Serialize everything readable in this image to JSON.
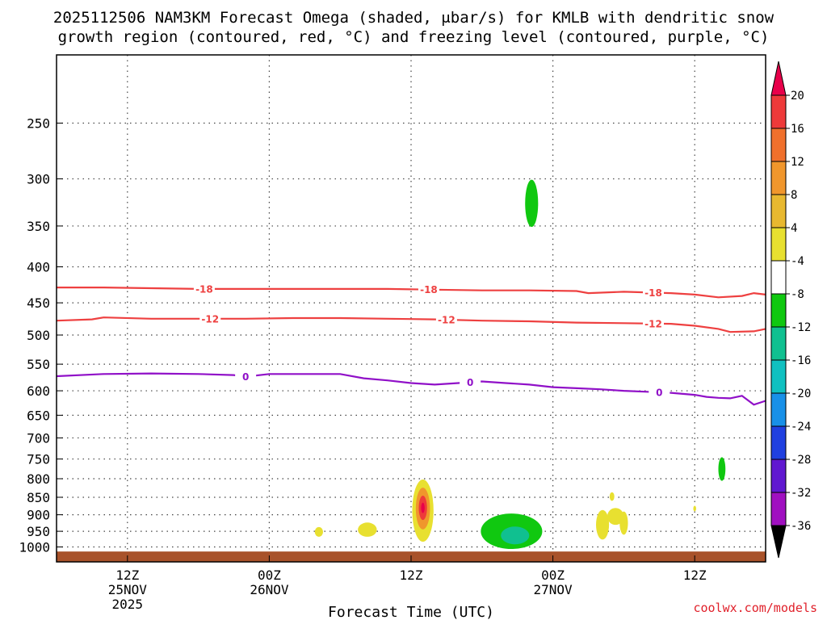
{
  "chart_data": {
    "type": "heatmap",
    "title_line1": "2025112506 NAM3KM Forecast Omega (shaded, μbar/s) for KMLB with dendritic snow",
    "title_line2": "growth region (contoured, red, °C) and freezing level (contoured, purple, °C)",
    "xlabel": "Forecast Time (UTC)",
    "ylabel": "",
    "credit": "coolwx.com/models",
    "x_range_hours": [
      0,
      60
    ],
    "y_range_hpa": [
      200,
      1050
    ],
    "y_ticks": [
      250,
      300,
      350,
      400,
      450,
      500,
      550,
      600,
      650,
      700,
      750,
      800,
      850,
      900,
      950,
      1000
    ],
    "y_tick_labels": [
      "250",
      "300",
      "350",
      "400",
      "450",
      "500",
      "550",
      "600",
      "650",
      "700",
      "750",
      "800",
      "850",
      "900",
      "950",
      "1000"
    ],
    "x_ticks": [
      {
        "hour": 6,
        "label": "12Z",
        "date": "25NOV",
        "year": "2025"
      },
      {
        "hour": 18,
        "label": "00Z",
        "date": "26NOV",
        "year": ""
      },
      {
        "hour": 30,
        "label": "12Z",
        "date": "",
        "year": ""
      },
      {
        "hour": 42,
        "label": "00Z",
        "date": "27NOV",
        "year": ""
      },
      {
        "hour": 54,
        "label": "12Z",
        "date": "",
        "year": ""
      }
    ],
    "grid": true,
    "colorbar": {
      "levels": [
        "20",
        "16",
        "12",
        "8",
        "4",
        "-4",
        "-8",
        "-12",
        "-16",
        "-20",
        "-24",
        "-28",
        "-32",
        "-36"
      ],
      "colors": [
        "#e8004a",
        "#ee3a3a",
        "#f0702c",
        "#f0962c",
        "#e8b830",
        "#e8e030",
        "#ffffff",
        "#10c810",
        "#10c090",
        "#10c0c0",
        "#1890e8",
        "#2040e0",
        "#6018d0",
        "#a010c0",
        "#a8a8a8",
        "#000000"
      ]
    },
    "contours": [
      {
        "name": "-18",
        "color": "#ee4040",
        "points": [
          [
            0,
            428
          ],
          [
            4,
            428
          ],
          [
            8,
            429
          ],
          [
            12,
            430
          ],
          [
            16,
            430
          ],
          [
            20,
            430
          ],
          [
            24,
            430
          ],
          [
            28,
            430
          ],
          [
            32,
            431
          ],
          [
            36,
            432
          ],
          [
            40,
            432
          ],
          [
            44,
            433
          ],
          [
            45,
            436
          ],
          [
            48,
            434
          ],
          [
            52,
            436
          ],
          [
            54,
            438
          ],
          [
            56,
            442
          ],
          [
            58,
            440
          ],
          [
            59,
            436
          ],
          [
            60,
            438
          ]
        ],
        "labels": [
          12.5,
          31.5,
          50.5
        ]
      },
      {
        "name": "-12",
        "color": "#ee4040",
        "points": [
          [
            0,
            477
          ],
          [
            3,
            475
          ],
          [
            4,
            472
          ],
          [
            8,
            474
          ],
          [
            12,
            474
          ],
          [
            16,
            474
          ],
          [
            20,
            473
          ],
          [
            24,
            473
          ],
          [
            28,
            474
          ],
          [
            32,
            475
          ],
          [
            36,
            477
          ],
          [
            40,
            478
          ],
          [
            44,
            480
          ],
          [
            48,
            481
          ],
          [
            52,
            482
          ],
          [
            54,
            485
          ],
          [
            56,
            490
          ],
          [
            57,
            495
          ],
          [
            59,
            494
          ],
          [
            60,
            490
          ]
        ],
        "labels": [
          13,
          33,
          50.5
        ]
      },
      {
        "name": "0",
        "color": "#9010c8",
        "points": [
          [
            0,
            572
          ],
          [
            4,
            568
          ],
          [
            8,
            567
          ],
          [
            12,
            568
          ],
          [
            15,
            570
          ],
          [
            16,
            573
          ],
          [
            18,
            568
          ],
          [
            20,
            568
          ],
          [
            24,
            568
          ],
          [
            26,
            576
          ],
          [
            28,
            580
          ],
          [
            30,
            585
          ],
          [
            32,
            588
          ],
          [
            34,
            585
          ],
          [
            36,
            582
          ],
          [
            38,
            585
          ],
          [
            40,
            588
          ],
          [
            42,
            593
          ],
          [
            44,
            595
          ],
          [
            46,
            597
          ],
          [
            48,
            600
          ],
          [
            50,
            602
          ],
          [
            52,
            604
          ],
          [
            54,
            608
          ],
          [
            55,
            612
          ],
          [
            56,
            614
          ],
          [
            57,
            615
          ],
          [
            58,
            610
          ],
          [
            59,
            628
          ],
          [
            60,
            620
          ]
        ],
        "labels": [
          16,
          35,
          51
        ]
      }
    ],
    "shaded_features": [
      {
        "name": "green-blob-upper",
        "color": "#10c810",
        "center": [
          40.2,
          325
        ],
        "half_width_h": 0.55,
        "half_height_hpa": 25
      },
      {
        "name": "green-blob-low-right",
        "color": "#10c810",
        "center": [
          56.3,
          775
        ],
        "half_width_h": 0.3,
        "half_height_hpa": 30
      },
      {
        "name": "yellow-blob-small",
        "color": "#e8e030",
        "center": [
          22.2,
          952
        ],
        "half_width_h": 0.35,
        "half_height_hpa": 15
      },
      {
        "name": "yellow-blob-pair",
        "color": "#e8e030",
        "center": [
          26.3,
          945
        ],
        "half_width_h": 0.8,
        "half_height_hpa": 22
      },
      {
        "name": "yellow-core",
        "color": "#e8e030",
        "center": [
          31.0,
          888
        ],
        "half_width_h": 0.9,
        "half_height_hpa": 90
      },
      {
        "name": "orange-core",
        "color": "#f0962c",
        "center": [
          31.0,
          882
        ],
        "half_width_h": 0.6,
        "half_height_hpa": 60
      },
      {
        "name": "red-core",
        "color": "#ee3a3a",
        "center": [
          31.0,
          880
        ],
        "half_width_h": 0.35,
        "half_height_hpa": 35
      },
      {
        "name": "magenta-core",
        "color": "#e8004a",
        "center": [
          31.0,
          880
        ],
        "half_width_h": 0.15,
        "half_height_hpa": 15
      },
      {
        "name": "green-large",
        "color": "#10c810",
        "center": [
          38.5,
          950
        ],
        "half_width_h": 2.6,
        "half_height_hpa": 55
      },
      {
        "name": "teal-core",
        "color": "#10c090",
        "center": [
          38.8,
          963
        ],
        "half_width_h": 1.2,
        "half_height_hpa": 28
      },
      {
        "name": "yellow-right-a",
        "color": "#e8e030",
        "center": [
          46.2,
          930
        ],
        "half_width_h": 0.55,
        "half_height_hpa": 45
      },
      {
        "name": "yellow-right-b",
        "color": "#e8e030",
        "center": [
          47.3,
          905
        ],
        "half_width_h": 0.7,
        "half_height_hpa": 25
      },
      {
        "name": "yellow-right-c",
        "color": "#e8e030",
        "center": [
          48.0,
          925
        ],
        "half_width_h": 0.35,
        "half_height_hpa": 35
      },
      {
        "name": "yellow-right-speck",
        "color": "#e8e030",
        "center": [
          47.0,
          848
        ],
        "half_width_h": 0.2,
        "half_height_hpa": 12
      },
      {
        "name": "yellow-far-speck",
        "color": "#e8e030",
        "center": [
          54.0,
          882
        ],
        "half_width_h": 0.12,
        "half_height_hpa": 8
      }
    ],
    "terrain": {
      "name": "surface",
      "color": "#a8522a",
      "top_hpa": 1015
    }
  }
}
